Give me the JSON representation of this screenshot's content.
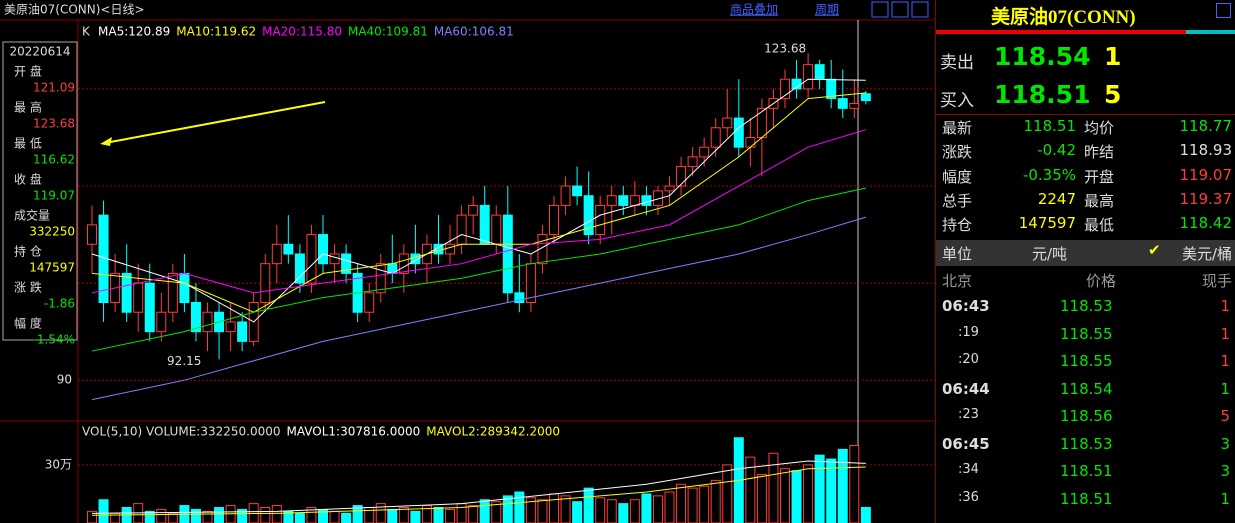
{
  "header": {
    "title": "美原油07(CONN)<日线>",
    "links": [
      "商品叠加",
      "周期"
    ]
  },
  "info_box": {
    "date": "20220614",
    "rows": [
      {
        "label": "开 盘",
        "value": "121.09"
      },
      {
        "label": "最 高",
        "value": "123.68"
      },
      {
        "label": "最 低",
        "value": "116.62"
      },
      {
        "label": "收 盘",
        "value": "119.07"
      },
      {
        "label": "成交量",
        "value": "332250"
      },
      {
        "label": "持 仓",
        "value": "147597"
      },
      {
        "label": "涨 跌",
        "value": "-1.86"
      },
      {
        "label": "幅 度",
        "value": "-1.54%"
      }
    ]
  },
  "chart_data": {
    "type": "candlestick",
    "kline_label": "K",
    "ohlc": [
      [
        104,
        108,
        101,
        106
      ],
      [
        107,
        108.5,
        96,
        98
      ],
      [
        98,
        103,
        97,
        101
      ],
      [
        101,
        104,
        96,
        97
      ],
      [
        97,
        102,
        95,
        100
      ],
      [
        100,
        102,
        94,
        95
      ],
      [
        95,
        99,
        94,
        97
      ],
      [
        97,
        102,
        96,
        101
      ],
      [
        101,
        103,
        97,
        98
      ],
      [
        98,
        100,
        94,
        95
      ],
      [
        95,
        98,
        93,
        97
      ],
      [
        97,
        98,
        92.15,
        95
      ],
      [
        95,
        98,
        93,
        96
      ],
      [
        96,
        97,
        93,
        94
      ],
      [
        94,
        99,
        93.5,
        98
      ],
      [
        98,
        103,
        97,
        102
      ],
      [
        102,
        106,
        100,
        104
      ],
      [
        104,
        107,
        102,
        103
      ],
      [
        103,
        104,
        99,
        100
      ],
      [
        100,
        106,
        99,
        105
      ],
      [
        105,
        107,
        101,
        102
      ],
      [
        102,
        104,
        100,
        103
      ],
      [
        103,
        104,
        100,
        101
      ],
      [
        101,
        102,
        96,
        97
      ],
      [
        97,
        100,
        96,
        99
      ],
      [
        99,
        103,
        98,
        102
      ],
      [
        102,
        105,
        100,
        101
      ],
      [
        101,
        104,
        99,
        103
      ],
      [
        103,
        106,
        101,
        102
      ],
      [
        102,
        105,
        100,
        104
      ],
      [
        104,
        107,
        102,
        103
      ],
      [
        103,
        106,
        102,
        104
      ],
      [
        104,
        108,
        103,
        107
      ],
      [
        107,
        109,
        105,
        108
      ],
      [
        108,
        110,
        104,
        104
      ],
      [
        104,
        108,
        103,
        107
      ],
      [
        107,
        110,
        98,
        99
      ],
      [
        99,
        103,
        97,
        98
      ],
      [
        98,
        103,
        97,
        102
      ],
      [
        102,
        106,
        101,
        105
      ],
      [
        105,
        109,
        104,
        108
      ],
      [
        108,
        111,
        107,
        110
      ],
      [
        110,
        112,
        108,
        109
      ],
      [
        109,
        111.5,
        104,
        105
      ],
      [
        105,
        109,
        104,
        108
      ],
      [
        108,
        110,
        105,
        109
      ],
      [
        109,
        110,
        107,
        108
      ],
      [
        108,
        110.5,
        107,
        109
      ],
      [
        109,
        110,
        107,
        108
      ],
      [
        108,
        110,
        107,
        109.5
      ],
      [
        109.5,
        111,
        108,
        110
      ],
      [
        110,
        113,
        109,
        112
      ],
      [
        112,
        114,
        111,
        113
      ],
      [
        113,
        115,
        112,
        114
      ],
      [
        114,
        117,
        113,
        116
      ],
      [
        116,
        120,
        115,
        117
      ],
      [
        117,
        121,
        113,
        114
      ],
      [
        114,
        117,
        112,
        115
      ],
      [
        115,
        119,
        111,
        118
      ],
      [
        118,
        120,
        116,
        119
      ],
      [
        119,
        122,
        118,
        121
      ],
      [
        121,
        123,
        119,
        120
      ],
      [
        120,
        123.68,
        119,
        122.5
      ],
      [
        122.5,
        123,
        120,
        121
      ],
      [
        121,
        123,
        118,
        119
      ],
      [
        119,
        122,
        117,
        118
      ],
      [
        118,
        121,
        117,
        118.5
      ],
      [
        119.5,
        119.8,
        118.4,
        118.8
      ]
    ],
    "ylim": [
      85.9,
      127.1
    ],
    "yticks": [
      90
    ],
    "gridlines": [
      100,
      110,
      120
    ],
    "high_label": "123.68",
    "low_label": "92.15",
    "ma_x": [
      0,
      8,
      14,
      20,
      26,
      32,
      38,
      44,
      50,
      56,
      62,
      67
    ],
    "ma_series": [
      {
        "name": "MA5:120.89",
        "color": "#ffffff",
        "values": [
          103,
          100,
          96,
          103,
          101,
          105,
          103,
          107,
          109,
          116,
          121,
          120.9
        ]
      },
      {
        "name": "MA10:119.62",
        "color": "#ffff00",
        "values": [
          101,
          100,
          97,
          101,
          102,
          104,
          104,
          106,
          108,
          113,
          119,
          119.6
        ]
      },
      {
        "name": "MA20:115.80",
        "color": "#ff00ff",
        "values": [
          99,
          101,
          99,
          100,
          101,
          102,
          104,
          104.5,
          106,
          110,
          114,
          115.8
        ]
      },
      {
        "name": "MA40:109.81",
        "color": "#00e600",
        "values": [
          93,
          95,
          97,
          98.5,
          99.5,
          100.5,
          102,
          103,
          104.5,
          106,
          108.5,
          109.8
        ]
      },
      {
        "name": "MA60:106.81",
        "color": "#8080ff",
        "values": [
          88,
          90,
          92,
          94,
          95.5,
          97,
          98.5,
          100,
          101.5,
          103,
          105,
          106.8
        ]
      }
    ],
    "volume": {
      "title": "VOL(5,10) VOLUME:332250.0000",
      "values": [
        6,
        12,
        5,
        8,
        10,
        6,
        7,
        5,
        9,
        7,
        6,
        8,
        9,
        7,
        10,
        8,
        9,
        6,
        5,
        8,
        7,
        6,
        5,
        9,
        8,
        10,
        7,
        8,
        6,
        9,
        8,
        7,
        10,
        9,
        12,
        11,
        14,
        16,
        13,
        12,
        15,
        14,
        11,
        18,
        13,
        12,
        10,
        12,
        15,
        14,
        16,
        20,
        18,
        19,
        22,
        30,
        44,
        34,
        25,
        36,
        28,
        27,
        30,
        35,
        33,
        38,
        40,
        8
      ],
      "ylim": [
        0,
        48
      ],
      "yticks": [
        {
          "value": 30,
          "label": "30万"
        }
      ],
      "ma_x": [
        0,
        16,
        32,
        48,
        56,
        62,
        67
      ],
      "ma_series": [
        {
          "name": "MAVOL1:307816.0000",
          "color": "#ffffff",
          "values": [
            5,
            6,
            10,
            20,
            28,
            32,
            30.8
          ]
        },
        {
          "name": "MAVOL2:289342.2000",
          "color": "#ffff00",
          "values": [
            4,
            5,
            8,
            16,
            22,
            28,
            28.9
          ]
        }
      ]
    }
  },
  "quote": {
    "name": "美原油07(CONN)",
    "sell": {
      "label": "卖出",
      "price": "118.54",
      "qty": "1"
    },
    "buy": {
      "label": "买入",
      "price": "118.51",
      "qty": "5"
    },
    "stats": [
      [
        "最新",
        "118.51",
        "均价",
        "118.77"
      ],
      [
        "涨跌",
        "-0.42",
        "昨结",
        "118.93"
      ],
      [
        "幅度",
        "-0.35%",
        "开盘",
        "119.07"
      ],
      [
        "总手",
        "2247",
        "最高",
        "119.37"
      ],
      [
        "持仓",
        "147597",
        "最低",
        "118.42"
      ]
    ],
    "unit": [
      "单位",
      "元/吨",
      "美元/桶"
    ],
    "trades_header": [
      "北京",
      "价格",
      "现手"
    ],
    "trades": [
      [
        "06:43",
        "118.53",
        "1"
      ],
      [
        ":19",
        "118.55",
        "1"
      ],
      [
        ":20",
        "118.55",
        "1"
      ],
      [
        "06:44",
        "118.54",
        "1"
      ],
      [
        ":23",
        "118.56",
        "5"
      ],
      [
        "06:45",
        "118.53",
        "3"
      ],
      [
        ":34",
        "118.51",
        "3"
      ],
      [
        ":36",
        "118.51",
        "1"
      ]
    ]
  }
}
